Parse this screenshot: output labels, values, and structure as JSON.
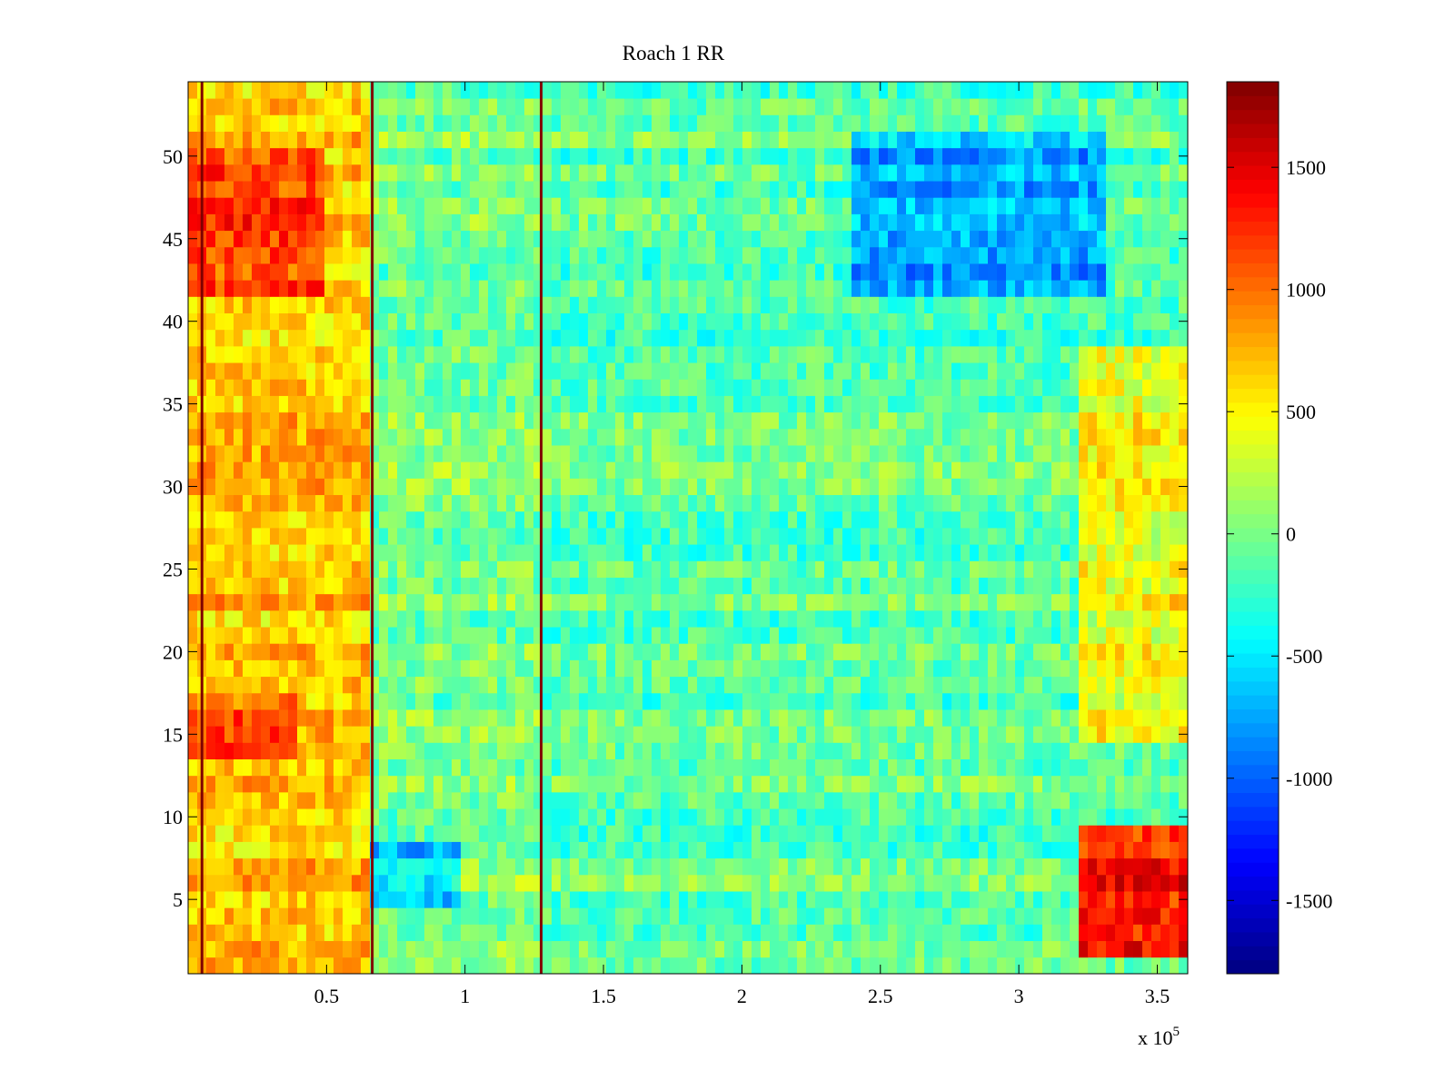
{
  "chart_data": {
    "type": "heatmap",
    "title": "Roach 1 RR",
    "xlabel": "",
    "ylabel": "",
    "x_multiplier": "x 10",
    "x_multiplier_exponent": "5",
    "x_range": [
      0,
      361000
    ],
    "y_range": [
      0.5,
      54.5
    ],
    "x_ticks": [
      0.5,
      1,
      1.5,
      2,
      2.5,
      3,
      3.5
    ],
    "x_tick_labels": [
      "0.5",
      "1",
      "1.5",
      "2",
      "2.5",
      "3",
      "3.5"
    ],
    "y_ticks": [
      5,
      10,
      15,
      20,
      25,
      30,
      35,
      40,
      45,
      50
    ],
    "y_tick_labels": [
      "5",
      "10",
      "15",
      "20",
      "25",
      "30",
      "35",
      "40",
      "45",
      "50"
    ],
    "rows": 54,
    "colormap": "jet",
    "colorbar": {
      "range": [
        -1800,
        1850
      ],
      "ticks": [
        -1500,
        -1000,
        -500,
        0,
        500,
        1000,
        1500
      ],
      "tick_labels": [
        "-1500",
        "-1000",
        "-500",
        "0",
        "500",
        "1000",
        "1500"
      ]
    },
    "vertical_lines_x": [
      5000,
      66500,
      127500
    ],
    "vertical_line_color": "#800000",
    "summary_by_region": [
      {
        "x_from": 0,
        "x_to": 66000,
        "rows": "1-54",
        "approx_value": 700
      },
      {
        "x_from": 0,
        "x_to": 50000,
        "rows": "42-50",
        "approx_value": 1200
      },
      {
        "x_from": 0,
        "x_to": 40000,
        "rows": "14-17",
        "approx_value": 1100
      },
      {
        "x_from": 66000,
        "x_to": 127000,
        "rows": "1-54",
        "approx_value": 0
      },
      {
        "x_from": 66000,
        "x_to": 100000,
        "rows": "5-8",
        "approx_value": -600
      },
      {
        "x_from": 127000,
        "x_to": 361000,
        "rows": "1-54",
        "approx_value": -100
      },
      {
        "x_from": 240000,
        "x_to": 330000,
        "rows": "42-51",
        "approx_value": -700
      },
      {
        "x_from": 320000,
        "x_to": 361000,
        "rows": "2-9",
        "approx_value": 1300
      },
      {
        "x_from": 320000,
        "x_to": 361000,
        "rows": "15-38",
        "approx_value": 450
      }
    ]
  }
}
